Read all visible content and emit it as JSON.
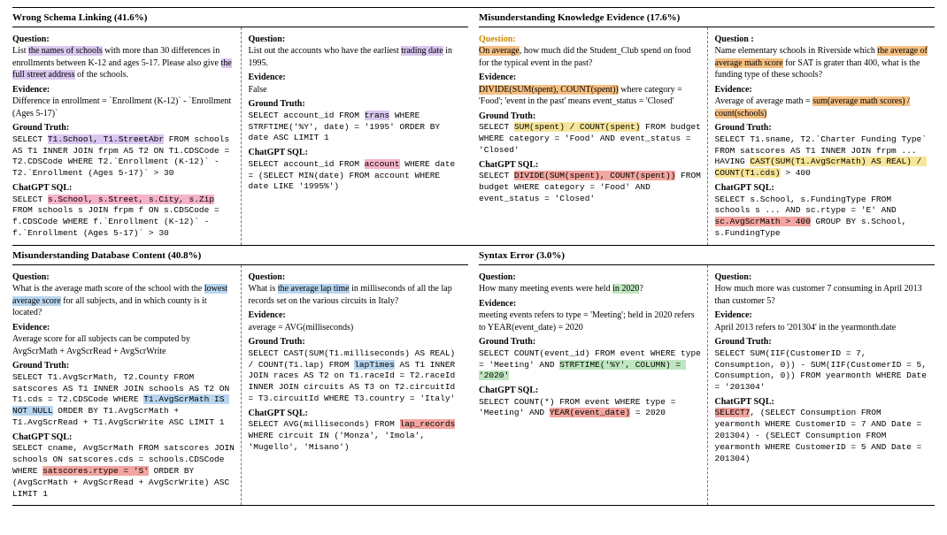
{
  "row1": {
    "left": {
      "title": "Wrong Schema Linking (41.6%)",
      "ex1": {
        "q_pre": "List ",
        "q_hl1": "the names of schools",
        "q_mid": " with more than 30 differences in enrollments between K-12 and ages 5-17. Please also give ",
        "q_hl2": "the full street address",
        "q_post": " of the schools.",
        "evidence": "Difference in enrollment = `Enrollment (K-12)` - `Enrollment (Ages 5-17)`",
        "gt_pre": "SELECT ",
        "gt_hl": "T1.School, T1.StreetAbr",
        "gt_post": " FROM schools AS T1 INNER JOIN frpm AS T2 ON T1.CDSCode = T2.CDSCode WHERE T2.`Enrollment (K-12)` - T2.`Enrollment (Ages 5-17)` > 30",
        "cg_pre": "SELECT ",
        "cg_hl": "s.School, s.Street, s.City, s.Zip",
        "cg_post": " FROM schools s JOIN frpm f ON s.CDSCode = f.CDSCode WHERE f.`Enrollment (K-12)` - f.`Enrollment (Ages 5-17)` > 30"
      },
      "ex2": {
        "q_pre": "List out the accounts who have the earliest ",
        "q_hl": "trading date",
        "q_post": " in 1995.",
        "evidence": "False",
        "gt_pre": "SELECT account_id FROM ",
        "gt_hl": "trans",
        "gt_post": " WHERE STRFTIME('%Y', date) = '1995' ORDER BY date ASC LIMIT 1",
        "cg_pre": "SELECT account_id FROM ",
        "cg_hl": "account",
        "cg_post": " WHERE date = (SELECT MIN(date) FROM account WHERE date LIKE '1995%')"
      }
    },
    "right": {
      "title": "Misunderstanding Knowledge Evidence (17.6%)",
      "ex1": {
        "q_hl_a": "On average",
        "q_rest": ", how much did the Student_Club spend on food for the typical event in the past?",
        "ev_hl": "DIVIDE(SUM(spent), COUNT(spent))",
        "ev_post": " where category = 'Food'; 'event in the past' means event_status = 'Closed'",
        "gt_pre": "SELECT ",
        "gt_hl": "SUM(spent) / COUNT(spent)",
        "gt_post": " FROM budget WHERE category = 'Food' AND event_status = 'Closed'",
        "cg_pre": "SELECT ",
        "cg_hl": "DIVIDE(SUM(spent), COUNT(spent))",
        "cg_post": " FROM budget WHERE category = 'Food' AND event_status = 'Closed'"
      },
      "ex2": {
        "q_pre": "Name elementary schools in Riverside which ",
        "q_hl": "the average of average math score",
        "q_post": " for SAT is grater than 400, what is the funding type of these schools?",
        "ev_pre": "Average of average math = ",
        "ev_hl": "sum(average math scores) / count(schools)",
        "gt_pre": "SELECT T1.sname, T2.`Charter Funding Type` FROM satscores AS T1 INNER JOIN frpm ... HAVING ",
        "gt_hl": "CAST(SUM(T1.AvgScrMath) AS REAL) / COUNT(T1.cds)",
        "gt_post": " > 400",
        "cg_pre": "SELECT s.School, s.FundingType FROM schools s ... AND sc.rtype = 'E' AND ",
        "cg_hl": "sc.AvgScrMath > 400",
        "cg_post": " GROUP BY s.School, s.FundingType"
      }
    }
  },
  "row2": {
    "left": {
      "title": "Misunderstanding Database Content (40.8%)",
      "ex1": {
        "q_pre": "What is the average math score of the school with the ",
        "q_hl": "lowest average score",
        "q_post": " for all subjects, and in which county is it located?",
        "evidence": "Average score for all subjects can be computed by AvgScrMath + AvgScrRead + AvgScrWrite",
        "gt_pre": "SELECT T1.AvgScrMath, T2.County FROM satscores AS T1 INNER JOIN schools AS T2 ON T1.cds = T2.CDSCode WHERE ",
        "gt_hl": "T1.AvgScrMath IS NOT NULL",
        "gt_post": " ORDER BY T1.AvgScrMath + T1.AvgScrRead + T1.AvgScrWrite ASC LIMIT 1",
        "cg_pre": "SELECT cname, AvgScrMath FROM satscores JOIN schools ON satscores.cds = schools.CDSCode WHERE ",
        "cg_hl": "satscores.rtype = 'S'",
        "cg_post": " ORDER BY (AvgScrMath + AvgScrRead + AvgScrWrite) ASC LIMIT 1"
      },
      "ex2": {
        "q_pre": "What is ",
        "q_hl": "the average lap time",
        "q_post": " in milliseconds of all the lap records set on the various circuits in Italy?",
        "evidence": "average = AVG(milliseconds)",
        "gt_pre": "SELECT CAST(SUM(T1.milliseconds) AS REAL) / COUNT(T1.lap) FROM ",
        "gt_hl": "lapTimes",
        "gt_post": " AS T1 INNER JOIN races AS T2 on T1.raceId = T2.raceId INNER JOIN circuits AS T3 on T2.circuitId = T3.circuitId WHERE T3.country = 'Italy'",
        "cg_pre": "SELECT AVG(milliseconds) FROM ",
        "cg_hl": "lap_records",
        "cg_post": " WHERE circuit IN ('Monza', 'Imola', 'Mugello', 'Misano')"
      }
    },
    "right": {
      "title": "Syntax Error (3.0%)",
      "ex1": {
        "q_pre": "How many meeting events were held ",
        "q_hl": "in 2020",
        "q_post": "?",
        "evidence": "meeting events refers to type = 'Meeting'; held in 2020 refers to YEAR(event_date) = 2020",
        "gt_pre": "SELECT COUNT(event_id) FROM event WHERE type = 'Meeting' AND ",
        "gt_hl": "STRFTIME('%Y', COLUMN) = '2020'",
        "cg_pre": "SELECT COUNT(*) FROM event WHERE type = 'Meeting' AND ",
        "cg_hl": "YEAR(event_date)",
        "cg_post": " = 2020"
      },
      "ex2": {
        "q": "How much more was customer 7 consuming in April 2013 than customer 5?",
        "evidence": "April 2013 refers to '201304' in the yearmonth.date",
        "gt": "SELECT SUM(IIF(CustomerID = 7, Consumption, 0)) - SUM(IIF(CustomerID = 5, Consumption, 0)) FROM yearmonth WHERE Date = '201304'",
        "cg_hl": "SELECT7",
        "cg_post": ", (SELECT Consumption FROM yearmonth WHERE CustomerID = 7 AND Date = 201304) - (SELECT Consumption FROM yearmonth WHERE CustomerID = 5 AND Date = 201304)"
      }
    }
  },
  "labels": {
    "question": "Question:",
    "question_c": "Question :",
    "evidence": "Evidence:",
    "gt": "Ground Truth:",
    "cg": "ChatGPT SQL:"
  }
}
